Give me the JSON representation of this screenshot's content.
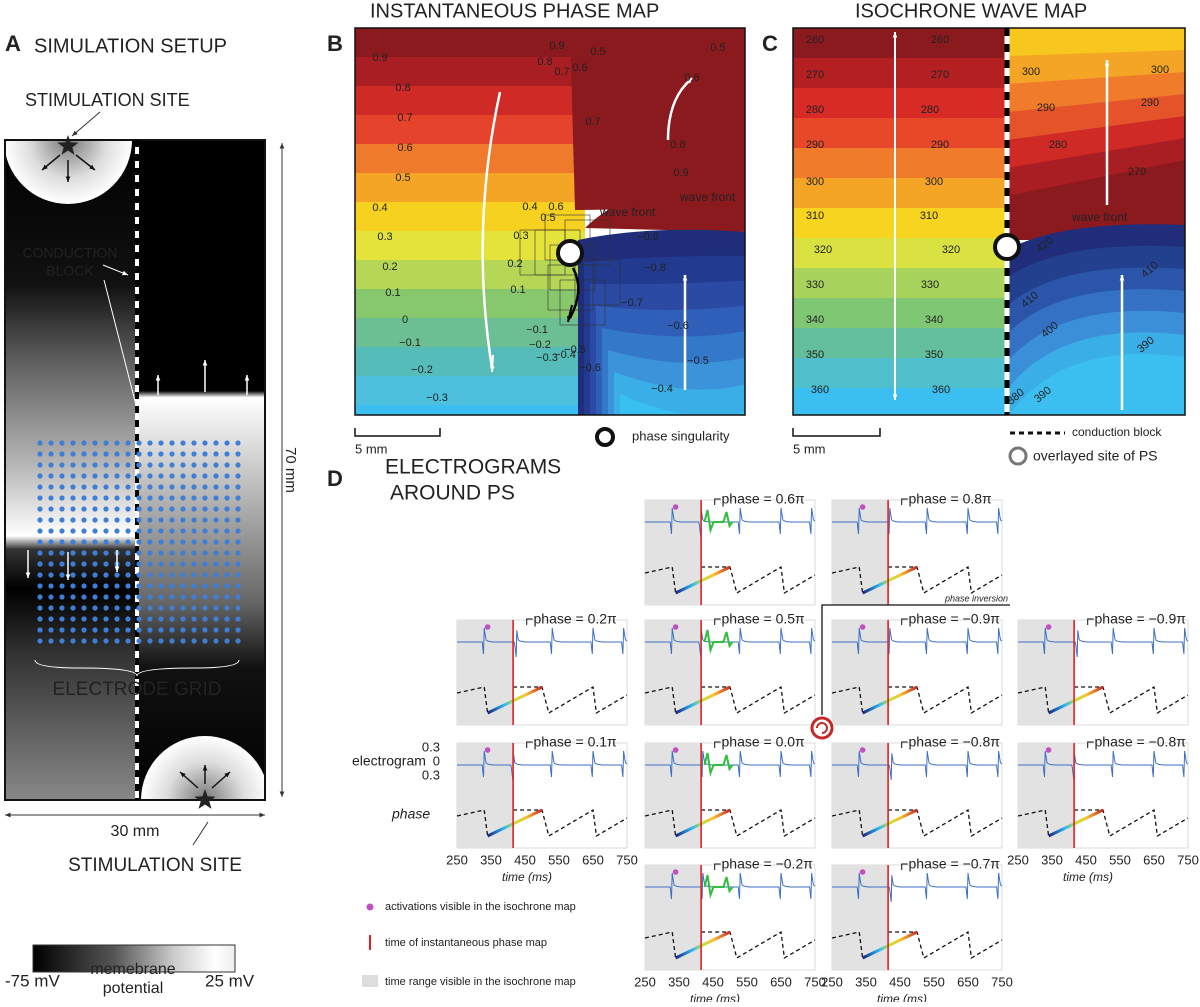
{
  "panel_a": {
    "letter": "A",
    "title": "SIMULATION SETUP",
    "stim_top": "STIMULATION SITE",
    "conduction_block": [
      "CONDUCTION",
      "BLOCK"
    ],
    "electrode_grid": "ELECTRODE GRID",
    "height": "70 mm",
    "width": "30 mm",
    "stim_bottom": "STIMULATION SITE",
    "colorbar": {
      "min": "-75 mV",
      "label": [
        "memebrane",
        "potential"
      ],
      "max": "25 mV"
    }
  },
  "panel_b": {
    "letter": "B",
    "title": "INSTANTANEOUS PHASE MAP",
    "contour_labels": [
      "0.9",
      "0.8",
      "0.7",
      "0.6",
      "0.5",
      "0.4",
      "0.3",
      "0.2",
      "0.1",
      "0",
      "−0.1",
      "−0.2",
      "−0.3",
      "0.9",
      "0.8",
      "0.7",
      "0.6",
      "0.5",
      "0.5",
      "0.6",
      "0.7",
      "0.8",
      "0.9",
      "0.6",
      "0.4",
      "0.5",
      "0.3",
      "0.2",
      "0.1",
      "−0.1",
      "−0.2",
      "−0.3",
      "−0.4",
      "−0.5",
      "−0.6",
      "−0.9",
      "−0.8",
      "−0.7",
      "−0.6",
      "−0.5",
      "−0.4"
    ],
    "wave_front_labels": [
      "wave front",
      "wave front"
    ],
    "scale": "5 mm",
    "legend": "phase singularity"
  },
  "panel_c": {
    "letter": "C",
    "title": "ISOCHRONE WAVE MAP",
    "contour_labels": [
      "260",
      "270",
      "280",
      "290",
      "300",
      "310",
      "320",
      "330",
      "340",
      "350",
      "360",
      "260",
      "270",
      "280",
      "290",
      "300",
      "310",
      "320",
      "330",
      "340",
      "350",
      "360",
      "300",
      "290",
      "280",
      "300",
      "290",
      "270",
      "420",
      "410",
      "410",
      "400",
      "390",
      "390",
      "380"
    ],
    "wave_front_label": "wave front",
    "scale": "5 mm",
    "legend": [
      "conduction block",
      "overlayed site of PS"
    ]
  },
  "panel_d": {
    "letter": "D",
    "title": [
      "ELECTROGRAMS",
      "AROUND PS"
    ],
    "cells": [
      "phase = 0.6π",
      "phase = 0.8π",
      "phase = 0.2π",
      "phase = 0.5π",
      "phase = −0.9π",
      "phase = −0.9π",
      "phase = 0.1π",
      "phase = 0.0π",
      "phase = −0.8π",
      "phase = −0.8π",
      "phase = −0.2π",
      "phase = −0.7π"
    ],
    "phase_inversion": "phase inversion",
    "y_label": "electrogram",
    "y_ticks": [
      "0.3",
      "0",
      "0.3"
    ],
    "phase_label": "phase",
    "x_ticks": [
      "250",
      "350",
      "450",
      "550",
      "650",
      "750"
    ],
    "x_label": "time (ms)",
    "legend": [
      "activations visible in the isochrone map",
      "time of instantaneous phase map",
      "time range visible in the isochrone map"
    ]
  }
}
